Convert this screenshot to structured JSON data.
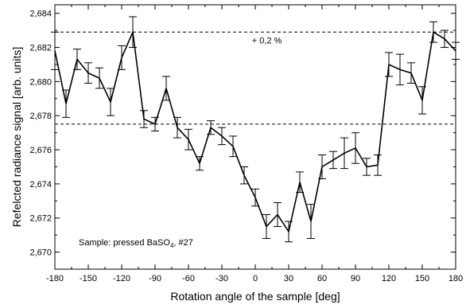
{
  "chart_data": {
    "type": "line",
    "xlabel": "Rotation angle of the sample [deg]",
    "ylabel": "Refelcted radiance signal [arb. units]",
    "xlim": [
      -180,
      180
    ],
    "ylim": [
      2.669,
      2.6845
    ],
    "x_ticks": [
      -180,
      -150,
      -120,
      -90,
      -60,
      -30,
      0,
      30,
      60,
      90,
      120,
      150,
      180
    ],
    "x_tick_labels": [
      "-180",
      "-150",
      "-120",
      "-90",
      "-60",
      "-30",
      "0",
      "30",
      "60",
      "90",
      "120",
      "150",
      "180"
    ],
    "y_ticks": [
      2.67,
      2.672,
      2.674,
      2.676,
      2.678,
      2.68,
      2.682,
      2.684
    ],
    "y_tick_labels": [
      "2,670",
      "2,672",
      "2,674",
      "2,676",
      "2,678",
      "2,680",
      "2,682",
      "2,684"
    ],
    "reference_lines": [
      2.6829,
      2.6775
    ],
    "annotations": {
      "percent": "+ 0,2 %",
      "sample_prefix": "Sample: pressed BaSO",
      "sample_sub": "4",
      "sample_suffix": ", #27"
    },
    "series": [
      {
        "x": [
          -180,
          -170,
          -160,
          -150,
          -140,
          -130,
          -120,
          -110,
          -100,
          -90,
          -80,
          -70,
          -60,
          -50,
          -40,
          -30,
          -20,
          -10,
          0,
          10,
          20,
          30,
          40,
          50,
          60,
          70,
          80,
          90,
          100,
          110,
          120,
          130,
          140,
          150,
          160,
          170,
          180
        ],
        "y": [
          2.6818,
          2.6787,
          2.6813,
          2.6805,
          2.6802,
          2.6788,
          2.6814,
          2.6829,
          2.6778,
          2.6775,
          2.6796,
          2.6773,
          2.6766,
          2.6752,
          2.6773,
          2.6768,
          2.6762,
          2.6745,
          2.6732,
          2.6715,
          2.6722,
          2.6712,
          2.6741,
          2.6718,
          2.675,
          2.6754,
          2.6758,
          2.6761,
          2.675,
          2.6751,
          2.681,
          2.6807,
          2.6805,
          2.6789,
          2.6829,
          2.6825,
          2.6818
        ],
        "err": [
          0.0011,
          0.0008,
          0.0006,
          0.0006,
          0.0006,
          0.0008,
          0.0007,
          0.0009,
          0.0005,
          0.0004,
          0.0007,
          0.0006,
          0.0006,
          0.0004,
          0.0004,
          0.0005,
          0.0006,
          0.0005,
          0.0005,
          0.0007,
          0.0007,
          0.0006,
          0.0006,
          0.001,
          0.0007,
          0.0005,
          0.0009,
          0.0009,
          0.0005,
          0.0006,
          0.0007,
          0.0009,
          0.0006,
          0.0008,
          0.0006,
          0.0005,
          0.0005
        ]
      }
    ]
  }
}
